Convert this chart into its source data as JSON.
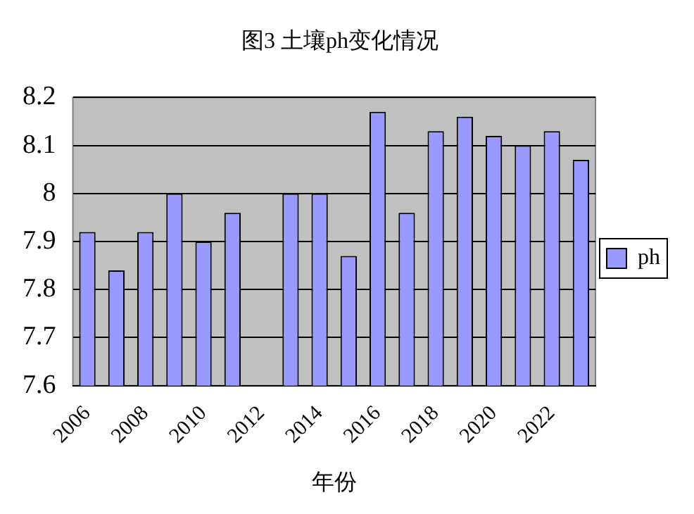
{
  "chart_data": {
    "type": "bar",
    "title": "图3 土壤ph变化情况",
    "xlabel": "年份",
    "categories": [
      "2006",
      null,
      "2008",
      null,
      "2010",
      null,
      "2012",
      null,
      "2014",
      null,
      "2016",
      null,
      "2018",
      null,
      "2020",
      null,
      "2022",
      null
    ],
    "series": [
      {
        "name": "ph",
        "color": "#9999ff",
        "values": [
          7.92,
          7.84,
          7.92,
          8.0,
          7.9,
          7.96,
          null,
          8.0,
          8.0,
          7.87,
          8.17,
          7.96,
          8.13,
          8.16,
          8.12,
          8.1,
          8.13,
          8.07
        ]
      }
    ],
    "ylim": [
      7.6,
      8.2
    ],
    "yticks": [
      7.6,
      7.7,
      7.8,
      7.9,
      8,
      8.1,
      8.2
    ],
    "grid": "y",
    "legend": "right"
  }
}
